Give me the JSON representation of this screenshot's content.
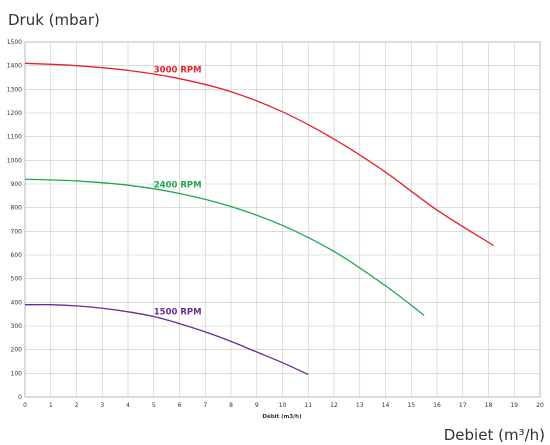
{
  "chart_data": {
    "type": "line",
    "title": "Druk (mbar)",
    "xlabel": "Débit (m3/h)",
    "xlabel_secondary": "Debiet (m³/h)",
    "xlim": [
      0,
      20
    ],
    "ylim": [
      0,
      1500
    ],
    "x_ticks": [
      0,
      1,
      2,
      3,
      4,
      5,
      6,
      7,
      8,
      9,
      10,
      11,
      12,
      13,
      14,
      15,
      16,
      17,
      18,
      19,
      20
    ],
    "y_ticks": [
      0,
      100,
      200,
      300,
      400,
      500,
      600,
      700,
      800,
      900,
      1000,
      1100,
      1200,
      1300,
      1400,
      1500
    ],
    "grid": true,
    "legend": "none",
    "series": [
      {
        "name": "3000 RPM",
        "color": "#e8202a",
        "x": [
          0,
          2,
          4,
          6,
          8,
          10,
          12,
          14,
          16,
          18.2
        ],
        "y": [
          1410,
          1400,
          1380,
          1345,
          1290,
          1205,
          1090,
          950,
          790,
          640
        ]
      },
      {
        "name": "2400 RPM",
        "color": "#1fa84f",
        "x": [
          0,
          2,
          4,
          6,
          8,
          10,
          12,
          14,
          15.5
        ],
        "y": [
          920,
          913,
          895,
          860,
          805,
          725,
          615,
          470,
          345
        ]
      },
      {
        "name": "1500 RPM",
        "color": "#6a2c91",
        "x": [
          0,
          1,
          2,
          3,
          4,
          5,
          6,
          7,
          8,
          9,
          10,
          11
        ],
        "y": [
          390,
          390,
          385,
          375,
          360,
          340,
          310,
          275,
          235,
          190,
          145,
          95
        ]
      }
    ]
  }
}
